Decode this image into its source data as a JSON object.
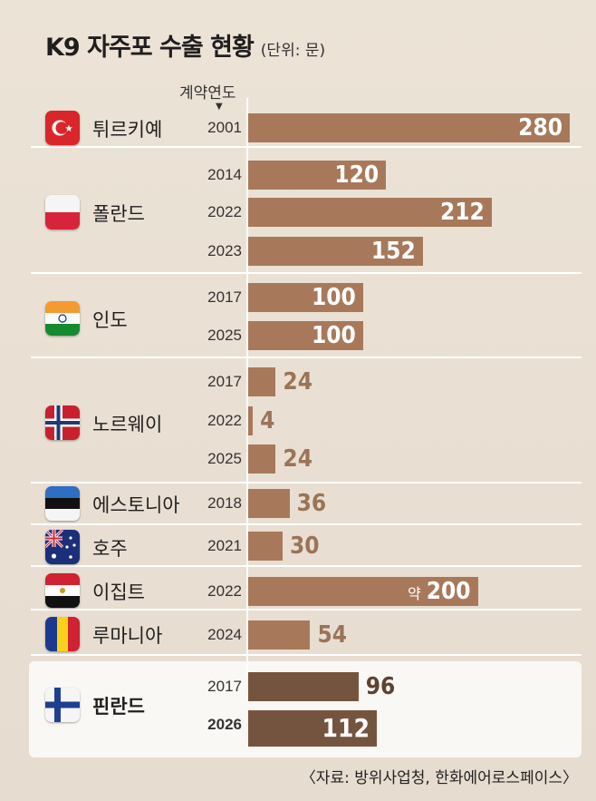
{
  "title": "K9 자주포 수출 현황",
  "unit": "(단위: 문)",
  "year_header": "계약연도",
  "source": "〈자료: 방위사업청, 한화에어로스페이스〉",
  "colors": {
    "bar": "#a7795a",
    "bar_highlight": "#75543f",
    "label_outside": "#9a7457"
  },
  "chart_data": {
    "type": "bar",
    "orientation": "horizontal",
    "unit": "문",
    "xlim": [
      0,
      280
    ],
    "groups": [
      {
        "country": "튀르키예",
        "flag": "turkey-flag-icon",
        "rows": [
          {
            "year": "2001",
            "value": 280,
            "label": "280"
          }
        ]
      },
      {
        "country": "폴란드",
        "flag": "poland-flag-icon",
        "rows": [
          {
            "year": "2014",
            "value": 120,
            "label": "120"
          },
          {
            "year": "2022",
            "value": 212,
            "label": "212"
          },
          {
            "year": "2023",
            "value": 152,
            "label": "152"
          }
        ]
      },
      {
        "country": "인도",
        "flag": "india-flag-icon",
        "rows": [
          {
            "year": "2017",
            "value": 100,
            "label": "100"
          },
          {
            "year": "2025",
            "value": 100,
            "label": "100"
          }
        ]
      },
      {
        "country": "노르웨이",
        "flag": "norway-flag-icon",
        "rows": [
          {
            "year": "2017",
            "value": 24,
            "label": "24"
          },
          {
            "year": "2022",
            "value": 4,
            "label": "4"
          },
          {
            "year": "2025",
            "value": 24,
            "label": "24"
          }
        ]
      },
      {
        "country": "에스토니아",
        "flag": "estonia-flag-icon",
        "rows": [
          {
            "year": "2018",
            "value": 36,
            "label": "36"
          }
        ]
      },
      {
        "country": "호주",
        "flag": "australia-flag-icon",
        "rows": [
          {
            "year": "2021",
            "value": 30,
            "label": "30"
          }
        ]
      },
      {
        "country": "이집트",
        "flag": "egypt-flag-icon",
        "rows": [
          {
            "year": "2022",
            "value": 200,
            "label": "200",
            "prefix": "약"
          }
        ]
      },
      {
        "country": "루마니아",
        "flag": "romania-flag-icon",
        "rows": [
          {
            "year": "2024",
            "value": 54,
            "label": "54"
          }
        ]
      },
      {
        "country": "핀란드",
        "flag": "finland-flag-icon",
        "highlight": true,
        "rows": [
          {
            "year": "2017",
            "value": 96,
            "label": "96"
          },
          {
            "year": "2026",
            "value": 112,
            "label": "112"
          }
        ]
      }
    ]
  }
}
